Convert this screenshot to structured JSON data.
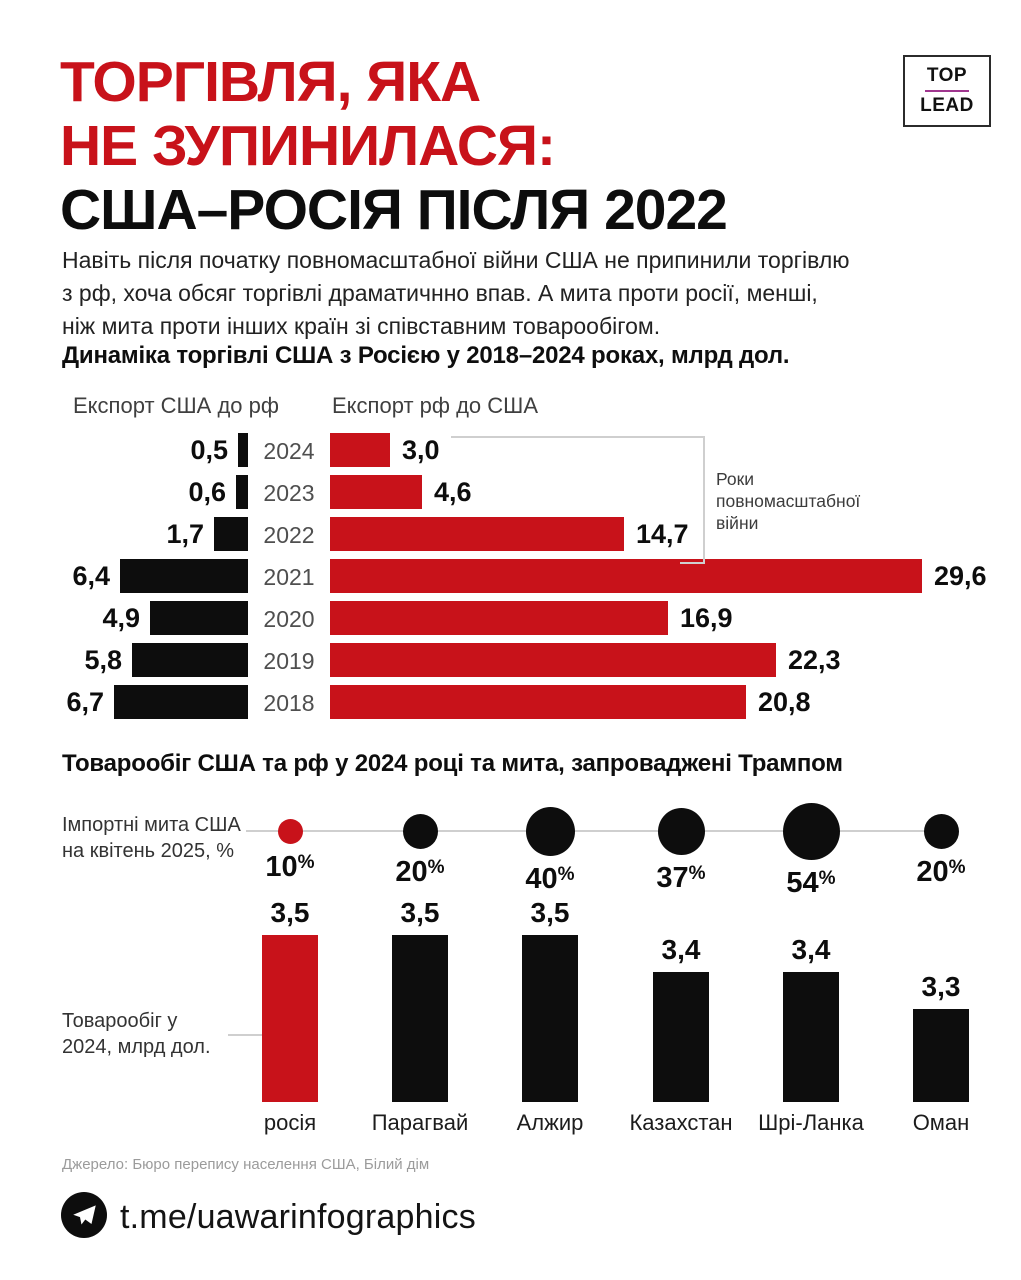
{
  "colors": {
    "accent_red": "#c8121a",
    "black": "#0d0d0d",
    "gray_line": "#cfcfcf",
    "gray_text": "#9b9b9b",
    "logo_line": "#a0368f"
  },
  "logo": {
    "top": "TOP",
    "lead": "LEAD"
  },
  "title": {
    "line1": "ТОРГІВЛЯ, ЯКА",
    "line2": "НЕ ЗУПИНИЛАСЯ:",
    "line3": "США–РОСІЯ ПІСЛЯ 2022"
  },
  "intro": {
    "lines": [
      "Навіть після початку повномасштабної війни США не припинили торгівлю",
      "з рф, хоча обсяг торгівлі драматичнно впав. А мита проти росії, менші,",
      "ніж мита проти інших країн зі співставним товарообігом."
    ]
  },
  "section1": {
    "title": "Динаміка торгівлі США з Росією у 2018–2024 роках, млрд дол.",
    "legend_left": "Експорт США до рф",
    "legend_right": "Експорт рф до США",
    "annotation_lines": [
      "Роки",
      "повномасштабної",
      "війни"
    ]
  },
  "section2": {
    "title": "Товарообіг США та рф у 2024 році та мита, запроваджені Трампом",
    "tariff_label_lines": [
      "Імпортні мита США",
      "на квітень 2025, %"
    ],
    "turnover_label_lines": [
      "Товарообіг у",
      "2024, млрд дол."
    ]
  },
  "footer": {
    "source": "Джерело: Бюро перепису населення США, Білий дім",
    "telegram": "t.me/uawarinfographics"
  },
  "chart_data": [
    {
      "type": "bar",
      "orientation": "horizontal_diverging",
      "title": "Динаміка торгівлі США з Росією у 2018–2024 роках, млрд дол.",
      "unit": "млрд дол.",
      "categories": [
        "2024",
        "2023",
        "2022",
        "2021",
        "2020",
        "2019",
        "2018"
      ],
      "series": [
        {
          "name": "Експорт США до рф",
          "color": "#0d0d0d",
          "values": [
            0.5,
            0.6,
            1.7,
            6.4,
            4.9,
            5.8,
            6.7
          ],
          "labels": [
            "0,5",
            "0,6",
            "1,7",
            "6,4",
            "4,9",
            "5,8",
            "6,7"
          ]
        },
        {
          "name": "Експорт рф до США",
          "color": "#c8121a",
          "values": [
            3.0,
            4.6,
            14.7,
            29.6,
            16.9,
            22.3,
            20.8
          ],
          "labels": [
            "3,0",
            "4,6",
            "14,7",
            "29,6",
            "16,9",
            "22,3",
            "20,8"
          ]
        }
      ],
      "annotation": "Роки повномасштабної війни",
      "annotation_categories": [
        "2024",
        "2023",
        "2022"
      ],
      "xlim": [
        0,
        30
      ],
      "grid": false,
      "legend_position": "top"
    },
    {
      "type": "bar",
      "orientation": "vertical",
      "title": "Товарообіг США та рф у 2024 році та мита, запроваджені Трампом",
      "categories": [
        "росія",
        "Парагвай",
        "Алжир",
        "Казахстан",
        "Шрі-Ланка",
        "Оман"
      ],
      "series": [
        {
          "name": "Імпортні мита США на квітень 2025, %",
          "type": "bubble",
          "values": [
            10,
            20,
            40,
            37,
            54,
            20
          ],
          "labels": [
            "10%",
            "20%",
            "40%",
            "37%",
            "54%",
            "20%"
          ],
          "colors": [
            "#c8121a",
            "#0d0d0d",
            "#0d0d0d",
            "#0d0d0d",
            "#0d0d0d",
            "#0d0d0d"
          ]
        },
        {
          "name": "Товарообіг у 2024, млрд дол.",
          "type": "bar",
          "values": [
            3.5,
            3.5,
            3.5,
            3.4,
            3.4,
            3.3
          ],
          "labels": [
            "3,5",
            "3,5",
            "3,5",
            "3,4",
            "3,4",
            "3,3"
          ],
          "colors": [
            "#c8121a",
            "#0d0d0d",
            "#0d0d0d",
            "#0d0d0d",
            "#0d0d0d",
            "#0d0d0d"
          ]
        }
      ],
      "highlight_category": "росія"
    }
  ]
}
